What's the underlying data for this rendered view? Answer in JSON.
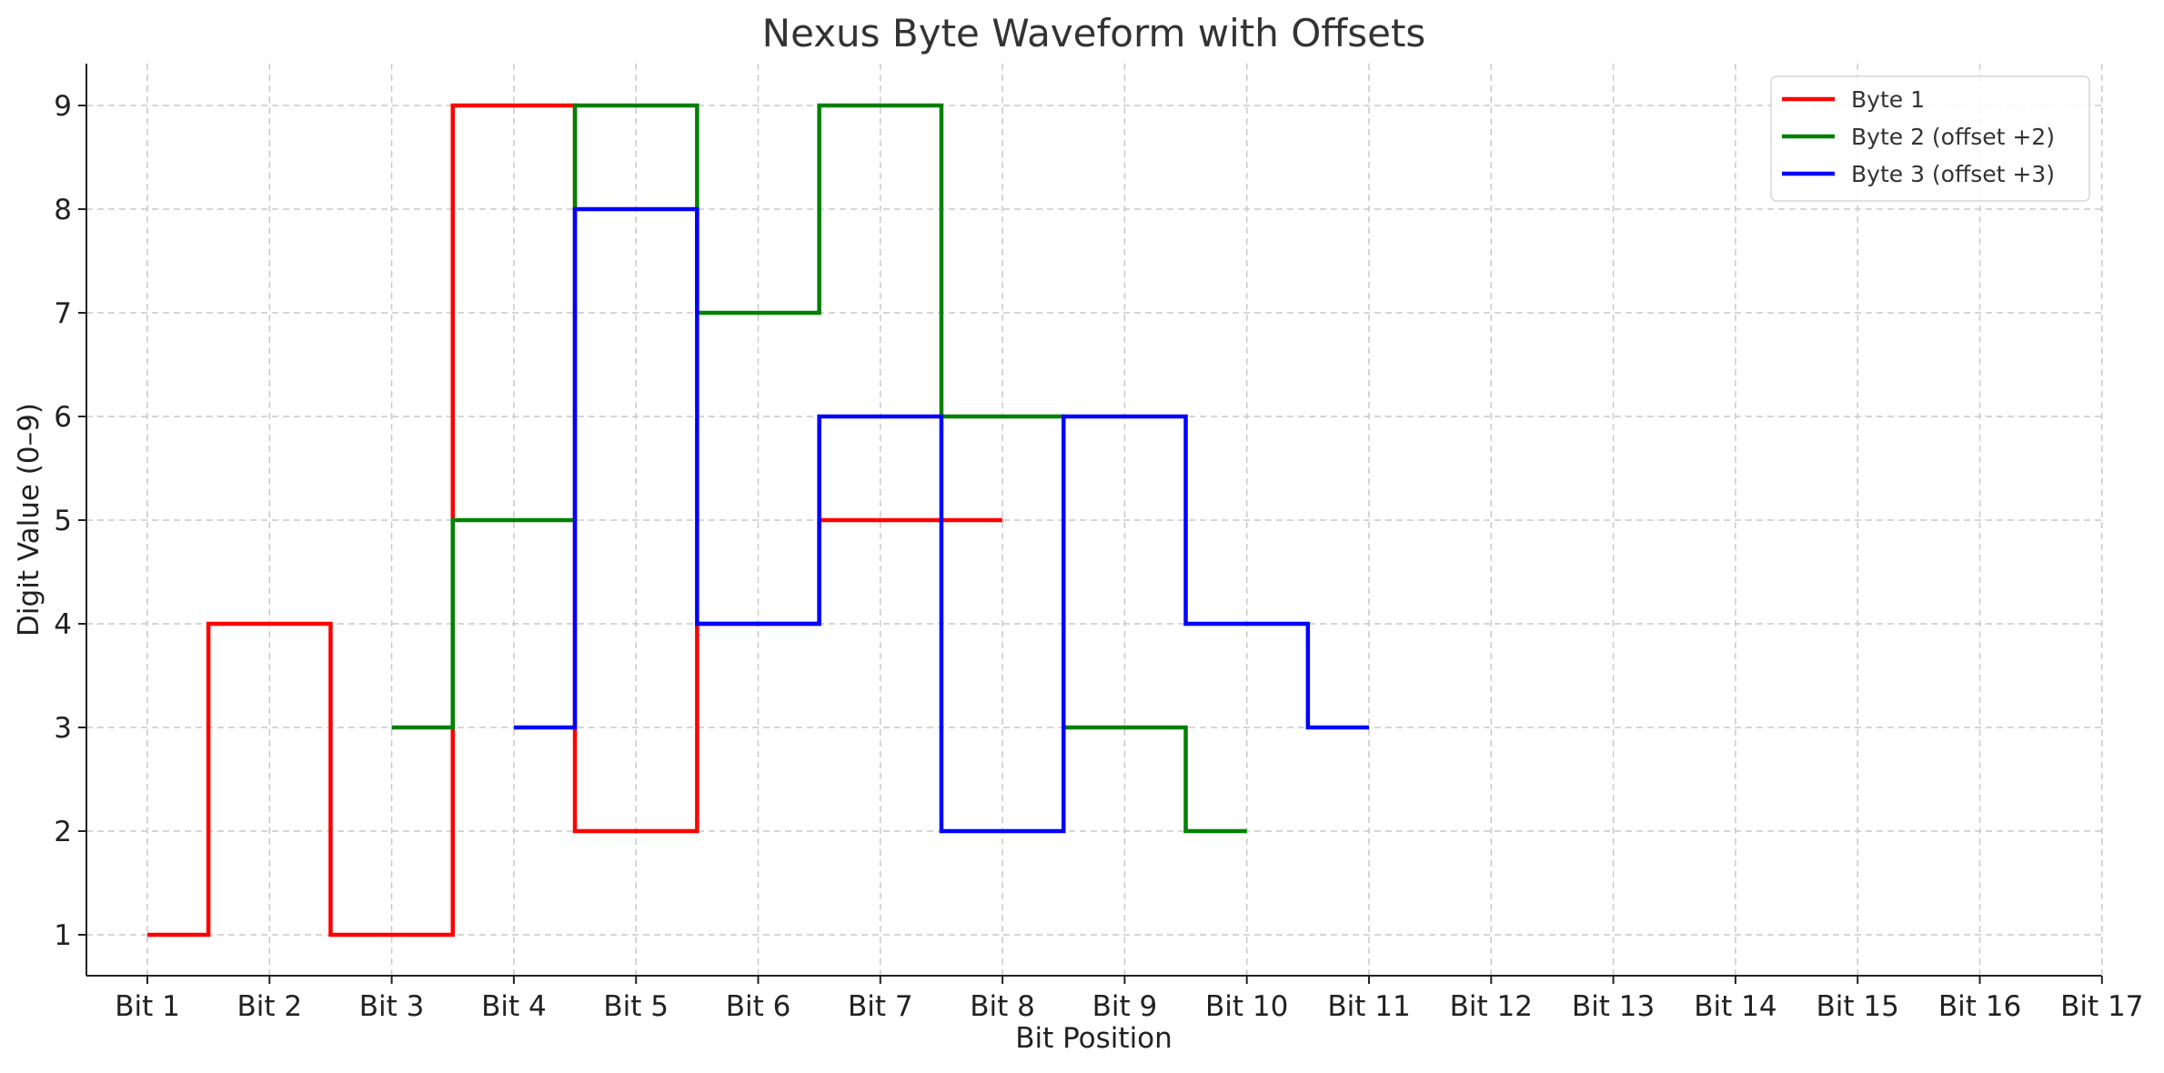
{
  "chart_data": {
    "type": "line",
    "title": "Nexus Byte Waveform with Offsets",
    "xlabel": "Bit Position",
    "ylabel": "Digit Value (0–9)",
    "categories": [
      "Bit 1",
      "Bit 2",
      "Bit 3",
      "Bit 4",
      "Bit 5",
      "Bit 6",
      "Bit 7",
      "Bit 8",
      "Bit 9",
      "Bit 10",
      "Bit 11",
      "Bit 12",
      "Bit 13",
      "Bit 14",
      "Bit 15",
      "Bit 16",
      "Bit 17"
    ],
    "yticks": [
      1,
      2,
      3,
      4,
      5,
      6,
      7,
      8,
      9
    ],
    "ylim": [
      0.6,
      9.4
    ],
    "step": "mid",
    "grid": true,
    "legend_position": "top-right",
    "series": [
      {
        "name": "Byte 1",
        "color": "#ff0000",
        "x": [
          1,
          2,
          3,
          4,
          5,
          6,
          7,
          8
        ],
        "values": [
          1,
          4,
          1,
          9,
          2,
          4,
          5,
          5
        ]
      },
      {
        "name": "Byte 2 (offset +2)",
        "color": "#008000",
        "x": [
          3,
          4,
          5,
          6,
          7,
          8,
          9,
          10
        ],
        "values": [
          3,
          5,
          9,
          7,
          9,
          6,
          3,
          2
        ]
      },
      {
        "name": "Byte 3 (offset +3)",
        "color": "#0000ff",
        "x": [
          4,
          5,
          6,
          7,
          8,
          9,
          10,
          11
        ],
        "values": [
          3,
          8,
          4,
          6,
          2,
          6,
          4,
          3
        ]
      }
    ]
  }
}
